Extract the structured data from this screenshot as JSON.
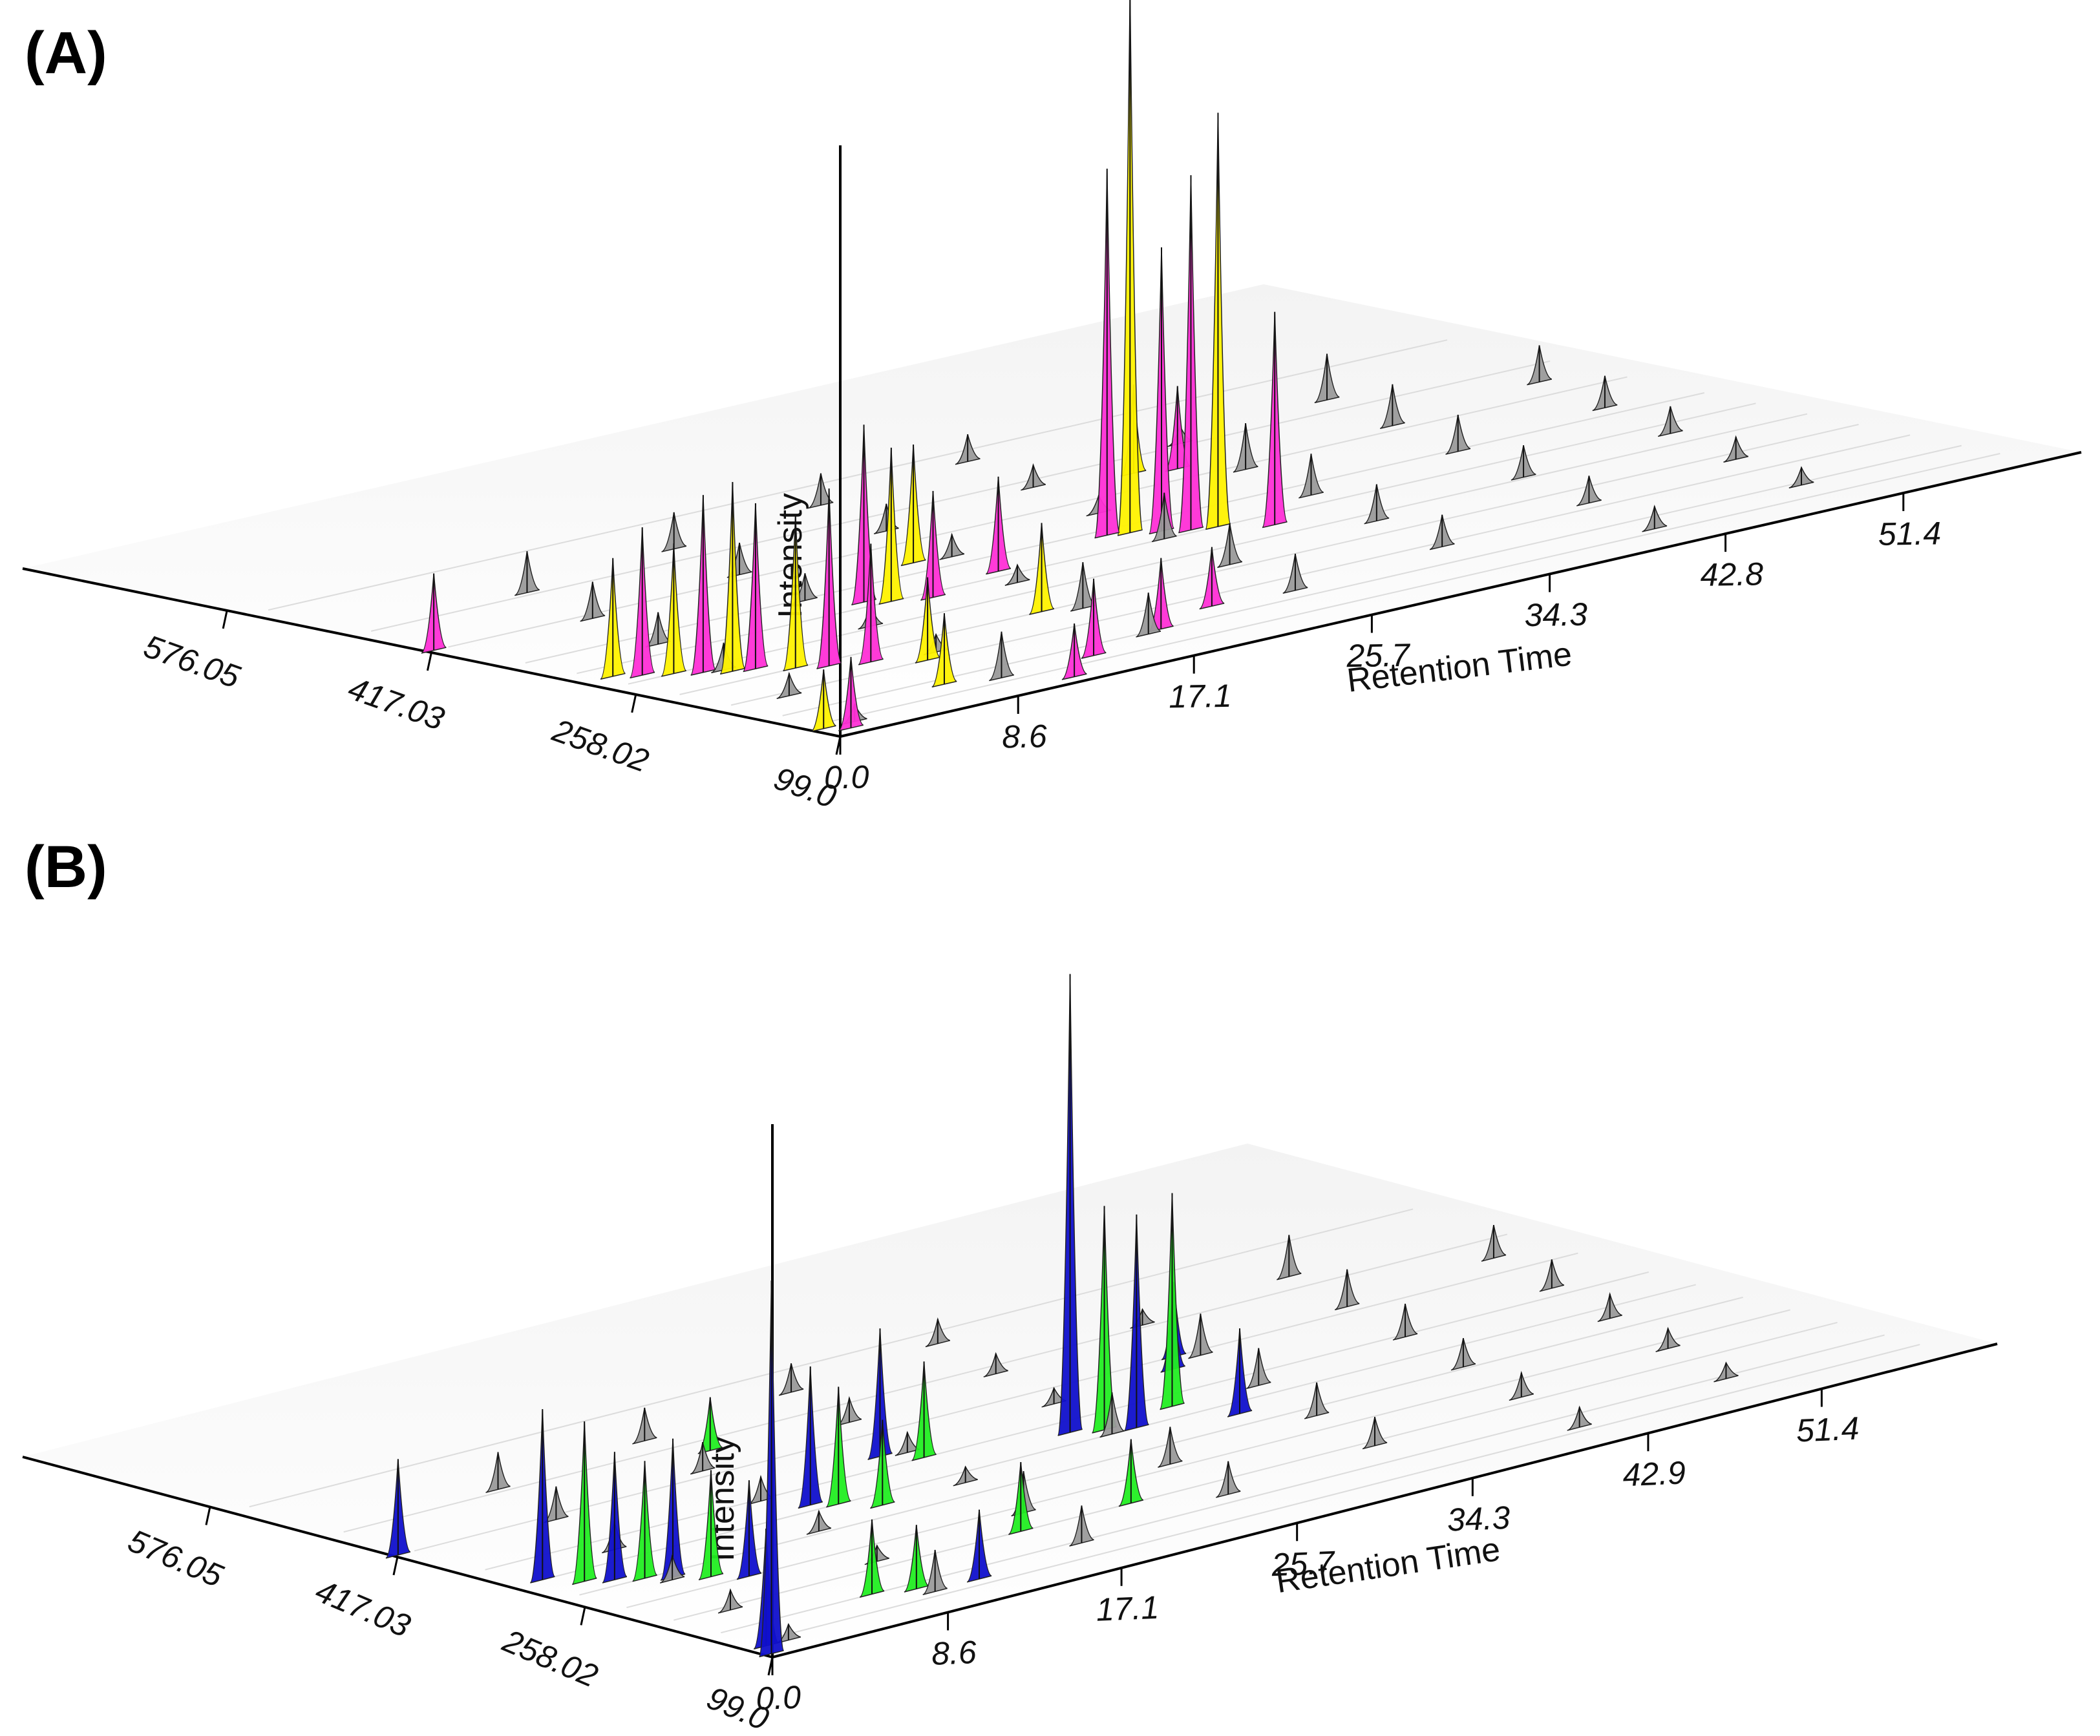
{
  "panels": [
    {
      "label": "(A)",
      "series_colors": [
        "#ff2fd6",
        "#fff200"
      ]
    },
    {
      "label": "(B)",
      "series_colors": [
        "#1010cc",
        "#22ee22"
      ]
    }
  ],
  "chart_data": [
    {
      "type": "area",
      "view": "3d-waterfall",
      "title": "(A)",
      "xlabel": "",
      "ylabel": "Retention Time",
      "zlabel": "Intensity",
      "x_ticks": [
        "576.05",
        "417.03",
        "258.02",
        "99.0"
      ],
      "y_ticks": [
        "0.0",
        "8.6",
        "17.1",
        "25.7",
        "34.3",
        "42.8",
        "51.4"
      ],
      "xlim": [
        99.0,
        735.0
      ],
      "ylim": [
        0.0,
        60.0
      ],
      "zlim": [
        0,
        1
      ],
      "peaks": [
        {
          "x": 420,
          "rt": 0.3,
          "h": 0.13,
          "color": "#ff2fd6"
        },
        {
          "x": 120,
          "rt": 0.5,
          "h": 0.1,
          "color": "#fff200"
        },
        {
          "x": 110,
          "rt": 1.2,
          "h": 0.12,
          "color": "#ff2fd6"
        },
        {
          "x": 300,
          "rt": 1.5,
          "h": 0.2,
          "color": "#fff200"
        },
        {
          "x": 290,
          "rt": 2.3,
          "h": 0.25,
          "color": "#ff2fd6"
        },
        {
          "x": 280,
          "rt": 3.2,
          "h": 0.22,
          "color": "#fff200"
        },
        {
          "x": 270,
          "rt": 4.0,
          "h": 0.3,
          "color": "#ff2fd6"
        },
        {
          "x": 260,
          "rt": 4.8,
          "h": 0.32,
          "color": "#fff200"
        },
        {
          "x": 255,
          "rt": 5.6,
          "h": 0.28,
          "color": "#ff2fd6"
        },
        {
          "x": 240,
          "rt": 6.6,
          "h": 0.26,
          "color": "#fff200"
        },
        {
          "x": 230,
          "rt": 7.6,
          "h": 0.3,
          "color": "#ff2fd6"
        },
        {
          "x": 150,
          "rt": 8.2,
          "h": 0.12,
          "color": "#fff200"
        },
        {
          "x": 220,
          "rt": 9.0,
          "h": 0.2,
          "color": "#ff2fd6"
        },
        {
          "x": 200,
          "rt": 10.5,
          "h": 0.14,
          "color": "#fff200"
        },
        {
          "x": 110,
          "rt": 12.0,
          "h": 0.09,
          "color": "#ff2fd6"
        },
        {
          "x": 140,
          "rt": 14.8,
          "h": 0.13,
          "color": "#ff2fd6"
        },
        {
          "x": 330,
          "rt": 15.5,
          "h": 0.3,
          "color": "#ff2fd6"
        },
        {
          "x": 320,
          "rt": 16.2,
          "h": 0.26,
          "color": "#fff200"
        },
        {
          "x": 310,
          "rt": 17.6,
          "h": 0.18,
          "color": "#ff2fd6"
        },
        {
          "x": 240,
          "rt": 18.5,
          "h": 0.15,
          "color": "#fff200"
        },
        {
          "x": 160,
          "rt": 19.3,
          "h": 0.12,
          "color": "#ff2fd6"
        },
        {
          "x": 380,
          "rt": 21.0,
          "h": 0.2,
          "color": "#fff200"
        },
        {
          "x": 330,
          "rt": 22.0,
          "h": 0.16,
          "color": "#ff2fd6"
        },
        {
          "x": 180,
          "rt": 23.0,
          "h": 0.1,
          "color": "#ff2fd6"
        },
        {
          "x": 350,
          "rt": 28.5,
          "h": 0.62,
          "color": "#ff2fd6"
        },
        {
          "x": 345,
          "rt": 29.3,
          "h": 0.92,
          "color": "#fff200"
        },
        {
          "x": 335,
          "rt": 30.2,
          "h": 0.48,
          "color": "#ff2fd6"
        },
        {
          "x": 325,
          "rt": 31.0,
          "h": 0.6,
          "color": "#ff2fd6"
        },
        {
          "x": 320,
          "rt": 32.0,
          "h": 0.7,
          "color": "#fff200"
        },
        {
          "x": 300,
          "rt": 33.5,
          "h": 0.36,
          "color": "#ff2fd6"
        },
        {
          "x": 450,
          "rt": 36.0,
          "h": 0.15,
          "color": "#fff200"
        },
        {
          "x": 440,
          "rt": 37.5,
          "h": 0.14,
          "color": "#ff2fd6"
        }
      ]
    },
    {
      "type": "area",
      "view": "3d-waterfall",
      "title": "(B)",
      "xlabel": "",
      "ylabel": "Retention Time",
      "zlabel": "Intensity",
      "x_ticks": [
        "576.05",
        "417.03",
        "258.02",
        "99.0"
      ],
      "y_ticks": [
        "0.0",
        "8.6",
        "17.1",
        "25.7",
        "34.3",
        "42.9",
        "51.4"
      ],
      "xlim": [
        99.0,
        735.0
      ],
      "ylim": [
        0.0,
        60.0
      ],
      "zlim": [
        0,
        1
      ],
      "peaks": [
        {
          "x": 420,
          "rt": 0.2,
          "h": 0.18,
          "color": "#1010cc"
        },
        {
          "x": 105,
          "rt": 0.3,
          "h": 0.7,
          "color": "#1010cc"
        },
        {
          "x": 120,
          "rt": 0.9,
          "h": 0.22,
          "color": "#1010cc"
        },
        {
          "x": 320,
          "rt": 1.5,
          "h": 0.32,
          "color": "#1010cc"
        },
        {
          "x": 300,
          "rt": 2.4,
          "h": 0.3,
          "color": "#22ee22"
        },
        {
          "x": 290,
          "rt": 3.3,
          "h": 0.24,
          "color": "#1010cc"
        },
        {
          "x": 280,
          "rt": 4.2,
          "h": 0.22,
          "color": "#22ee22"
        },
        {
          "x": 270,
          "rt": 5.0,
          "h": 0.26,
          "color": "#1010cc"
        },
        {
          "x": 255,
          "rt": 6.0,
          "h": 0.2,
          "color": "#22ee22"
        },
        {
          "x": 240,
          "rt": 7.0,
          "h": 0.18,
          "color": "#1010cc"
        },
        {
          "x": 160,
          "rt": 8.4,
          "h": 0.14,
          "color": "#22ee22"
        },
        {
          "x": 150,
          "rt": 10.0,
          "h": 0.12,
          "color": "#22ee22"
        },
        {
          "x": 140,
          "rt": 12.5,
          "h": 0.13,
          "color": "#1010cc"
        },
        {
          "x": 330,
          "rt": 15.2,
          "h": 0.26,
          "color": "#1010cc"
        },
        {
          "x": 320,
          "rt": 16.0,
          "h": 0.22,
          "color": "#22ee22"
        },
        {
          "x": 300,
          "rt": 17.0,
          "h": 0.16,
          "color": "#22ee22"
        },
        {
          "x": 200,
          "rt": 18.0,
          "h": 0.13,
          "color": "#22ee22"
        },
        {
          "x": 460,
          "rt": 17.8,
          "h": 0.1,
          "color": "#22ee22"
        },
        {
          "x": 380,
          "rt": 21.5,
          "h": 0.24,
          "color": "#1010cc"
        },
        {
          "x": 360,
          "rt": 22.5,
          "h": 0.18,
          "color": "#22ee22"
        },
        {
          "x": 200,
          "rt": 23.4,
          "h": 0.12,
          "color": "#22ee22"
        },
        {
          "x": 340,
          "rt": 28.5,
          "h": 0.86,
          "color": "#1010cc"
        },
        {
          "x": 330,
          "rt": 29.6,
          "h": 0.42,
          "color": "#22ee22"
        },
        {
          "x": 320,
          "rt": 30.6,
          "h": 0.4,
          "color": "#1010cc"
        },
        {
          "x": 340,
          "rt": 33.5,
          "h": 0.4,
          "color": "#22ee22"
        },
        {
          "x": 300,
          "rt": 34.5,
          "h": 0.16,
          "color": "#1010cc"
        },
        {
          "x": 400,
          "rt": 37.0,
          "h": 0.14,
          "color": "#1010cc"
        },
        {
          "x": 420,
          "rt": 38.2,
          "h": 0.14,
          "color": "#1010cc"
        }
      ]
    }
  ]
}
